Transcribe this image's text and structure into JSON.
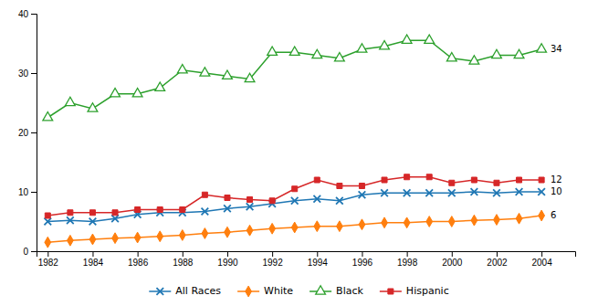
{
  "chart_data": {
    "type": "line",
    "x": [
      1982,
      1983,
      1984,
      1985,
      1986,
      1987,
      1988,
      1989,
      1990,
      1991,
      1992,
      1993,
      1994,
      1995,
      1996,
      1997,
      1998,
      1999,
      2000,
      2001,
      2002,
      2003,
      2004
    ],
    "series": [
      {
        "name": "All Races",
        "marker": "x",
        "values": [
          5.0,
          5.2,
          5.0,
          5.5,
          6.2,
          6.5,
          6.5,
          6.7,
          7.2,
          7.5,
          8.0,
          8.5,
          8.8,
          8.5,
          9.5,
          9.8,
          9.8,
          9.8,
          9.8,
          10.0,
          9.8,
          10.0,
          10.0
        ]
      },
      {
        "name": "White",
        "marker": "diamond",
        "values": [
          1.5,
          1.8,
          2.0,
          2.2,
          2.3,
          2.5,
          2.7,
          3.0,
          3.2,
          3.5,
          3.8,
          4.0,
          4.2,
          4.2,
          4.5,
          4.8,
          4.8,
          5.0,
          5.0,
          5.2,
          5.3,
          5.5,
          6.0
        ]
      },
      {
        "name": "Black",
        "marker": "triangle-open",
        "values": [
          22.5,
          25.0,
          24.0,
          26.5,
          26.5,
          27.5,
          30.5,
          30.0,
          29.5,
          29.0,
          33.5,
          33.5,
          33.0,
          32.5,
          34.0,
          34.5,
          35.5,
          35.5,
          32.5,
          32.0,
          33.0,
          33.0,
          34.0
        ]
      },
      {
        "name": "Hispanic",
        "marker": "square",
        "values": [
          6.0,
          6.5,
          6.5,
          6.5,
          7.0,
          7.0,
          7.0,
          9.5,
          9.0,
          8.7,
          8.5,
          10.5,
          12.0,
          11.0,
          11.0,
          12.0,
          12.5,
          12.5,
          11.5,
          12.0,
          11.5,
          12.0,
          12.0
        ]
      }
    ],
    "annotations": [
      {
        "text": "34",
        "x": 2004.4,
        "y": 34.0
      },
      {
        "text": "12",
        "x": 2004.4,
        "y": 12.0
      },
      {
        "text": "10",
        "x": 2004.4,
        "y": 10.0
      },
      {
        "text": "6",
        "x": 2004.4,
        "y": 6.0
      }
    ],
    "xlim": [
      1981.5,
      2005.5
    ],
    "xticks": [
      1982,
      1984,
      1986,
      1988,
      1990,
      1992,
      1994,
      1996,
      1998,
      2000,
      2002,
      2004
    ],
    "ylim": [
      0,
      40
    ],
    "yticks": [
      0,
      10,
      20,
      30,
      40
    ],
    "grid": false,
    "legend": "bottom"
  }
}
